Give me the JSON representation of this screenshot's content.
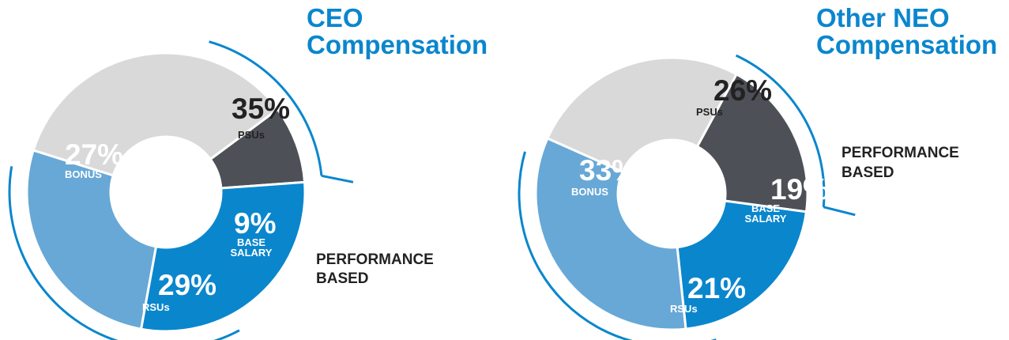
{
  "colors": {
    "psus": "#d9d9d9",
    "base_salary": "#4d5157",
    "rsus": "#0a86cd",
    "bonus": "#67a8d6",
    "accent": "#0a86cd",
    "label_dark": "#222222",
    "label_light": "#ffffff"
  },
  "chart_data": [
    {
      "type": "pie",
      "title_lines": [
        "CEO",
        "Compensation"
      ],
      "performance_lines": [
        "PERFORMANCE",
        "BASED"
      ],
      "slices": [
        {
          "key": "psus",
          "label": "PSUs",
          "value": 35,
          "value_text": "35%"
        },
        {
          "key": "base_salary",
          "label_lines": [
            "BASE",
            "SALARY"
          ],
          "value": 9,
          "value_text": "9%"
        },
        {
          "key": "rsus",
          "label": "RSUs",
          "value": 29,
          "value_text": "29%"
        },
        {
          "key": "bonus",
          "label": "BONUS",
          "value": 27,
          "value_text": "27%"
        }
      ]
    },
    {
      "type": "pie",
      "title_lines": [
        "Other NEO",
        "Compensation"
      ],
      "performance_lines": [
        "PERFORMANCE",
        "BASED"
      ],
      "slices": [
        {
          "key": "psus",
          "label": "PSUs",
          "value": 26,
          "value_text": "26%"
        },
        {
          "key": "base_salary",
          "label_lines": [
            "BASE",
            "SALARY"
          ],
          "value": 19,
          "value_text": "19%"
        },
        {
          "key": "rsus",
          "label": "RSUs",
          "value": 21,
          "value_text": "21%"
        },
        {
          "key": "bonus",
          "label": "BONUS",
          "value": 33,
          "value_text": "33%"
        }
      ]
    }
  ]
}
